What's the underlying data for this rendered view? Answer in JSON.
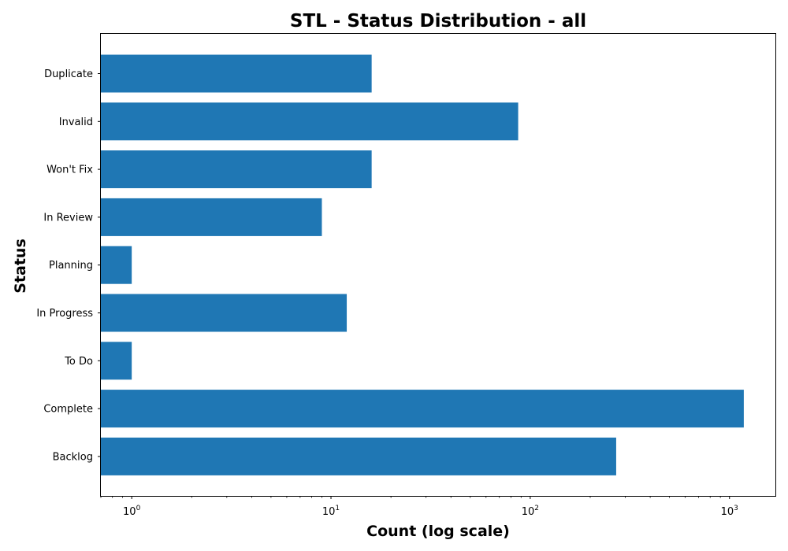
{
  "chart_data": {
    "type": "bar",
    "orientation": "horizontal",
    "title": "STL - Status Distribution - all",
    "xlabel": "Count (log scale)",
    "ylabel": "Status",
    "x_scale": "log",
    "xlim": [
      0.7,
      1700
    ],
    "x_ticks": [
      {
        "value": 1,
        "base": "10",
        "exp": "0"
      },
      {
        "value": 10,
        "base": "10",
        "exp": "1"
      },
      {
        "value": 100,
        "base": "10",
        "exp": "2"
      },
      {
        "value": 1000,
        "base": "10",
        "exp": "3"
      }
    ],
    "categories": [
      "Duplicate",
      "Invalid",
      "Won't Fix",
      "In Review",
      "Planning",
      "In Progress",
      "To Do",
      "Complete",
      "Backlog"
    ],
    "values": [
      16,
      87,
      16,
      9,
      1,
      12,
      1,
      1180,
      270
    ],
    "bar_color": "#1f77b4",
    "grid": false,
    "legend": "none"
  }
}
